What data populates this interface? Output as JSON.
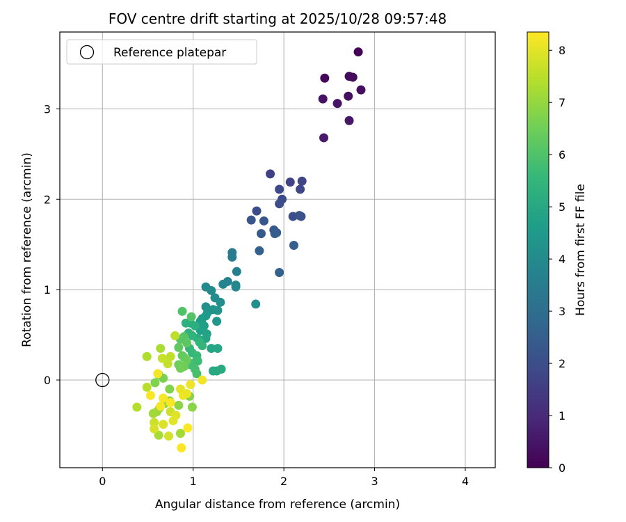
{
  "chart_data": {
    "type": "scatter",
    "title": "FOV centre drift starting at 2025/10/28 09:57:48",
    "xlabel": "Angular distance from reference (arcmin)",
    "ylabel": "Rotation from reference (arcmin)",
    "xlim": [
      -0.47,
      4.33
    ],
    "ylim": [
      -0.97,
      3.85
    ],
    "xticks": [
      0,
      1,
      2,
      3,
      4
    ],
    "yticks": [
      0,
      1,
      2,
      3
    ],
    "grid": true,
    "legend": {
      "label": "Reference platepar",
      "position": "top-left"
    },
    "reference_point": {
      "x": 0,
      "y": 0
    },
    "colorbar": {
      "label": "Hours from first FF file",
      "min": 0,
      "max": 8.35,
      "ticks": [
        0,
        1,
        2,
        3,
        4,
        5,
        6,
        7,
        8
      ],
      "colormap": "viridis"
    },
    "colormap_stops": [
      "#440154",
      "#482878",
      "#3e4989",
      "#31688e",
      "#26828e",
      "#1f9e89",
      "#35b779",
      "#6ece58",
      "#b5de2b",
      "#fde725"
    ],
    "points": [
      [
        2.82,
        3.63,
        0.05
      ],
      [
        2.45,
        3.34,
        0.15
      ],
      [
        2.72,
        3.36,
        0.2
      ],
      [
        2.76,
        3.35,
        0.25
      ],
      [
        2.85,
        3.21,
        0.3
      ],
      [
        2.71,
        3.14,
        0.35
      ],
      [
        2.43,
        3.11,
        0.4
      ],
      [
        2.59,
        3.06,
        0.45
      ],
      [
        2.72,
        2.87,
        0.5
      ],
      [
        2.44,
        2.68,
        0.6
      ],
      [
        1.85,
        2.28,
        1.6
      ],
      [
        2.07,
        2.19,
        1.7
      ],
      [
        2.2,
        2.2,
        1.75
      ],
      [
        2.18,
        2.11,
        1.8
      ],
      [
        1.95,
        2.11,
        1.85
      ],
      [
        1.98,
        2.0,
        1.9
      ],
      [
        1.95,
        1.95,
        1.95
      ],
      [
        1.7,
        1.87,
        2.0
      ],
      [
        2.1,
        1.81,
        2.05
      ],
      [
        2.19,
        1.81,
        2.1
      ],
      [
        2.17,
        1.82,
        2.15
      ],
      [
        1.64,
        1.77,
        2.2
      ],
      [
        1.78,
        1.76,
        2.25
      ],
      [
        1.89,
        1.66,
        2.3
      ],
      [
        1.75,
        1.62,
        2.35
      ],
      [
        1.92,
        1.63,
        2.4
      ],
      [
        1.9,
        1.62,
        2.45
      ],
      [
        2.11,
        1.49,
        2.5
      ],
      [
        1.73,
        1.43,
        2.55
      ],
      [
        1.95,
        1.19,
        2.6
      ],
      [
        1.43,
        1.41,
        3.4
      ],
      [
        1.43,
        1.36,
        3.5
      ],
      [
        1.48,
        1.2,
        3.6
      ],
      [
        1.38,
        1.09,
        3.7
      ],
      [
        1.33,
        1.06,
        3.8
      ],
      [
        1.47,
        1.05,
        3.85
      ],
      [
        1.47,
        1.03,
        3.9
      ],
      [
        1.14,
        1.03,
        3.95
      ],
      [
        1.2,
        0.99,
        4.0
      ],
      [
        1.24,
        0.91,
        4.05
      ],
      [
        1.3,
        0.86,
        4.1
      ],
      [
        1.69,
        0.84,
        4.15
      ],
      [
        1.14,
        0.81,
        4.2
      ],
      [
        1.22,
        0.78,
        4.25
      ],
      [
        1.27,
        0.77,
        4.3
      ],
      [
        1.16,
        0.75,
        4.35
      ],
      [
        1.26,
        0.65,
        4.4
      ],
      [
        1.14,
        0.71,
        4.5
      ],
      [
        1.1,
        0.68,
        4.55
      ],
      [
        1.08,
        0.65,
        4.6
      ],
      [
        1.12,
        0.6,
        4.65
      ],
      [
        1.08,
        0.55,
        4.7
      ],
      [
        1.15,
        0.51,
        4.8
      ],
      [
        1.14,
        0.46,
        4.85
      ],
      [
        1.2,
        0.35,
        4.9
      ],
      [
        1.27,
        0.35,
        4.95
      ],
      [
        1.22,
        0.1,
        5.0
      ],
      [
        1.26,
        0.1,
        5.05
      ],
      [
        1.31,
        0.12,
        5.1
      ],
      [
        1.05,
        0.46,
        5.15
      ],
      [
        0.97,
        0.63,
        5.2
      ],
      [
        1.02,
        0.6,
        5.25
      ],
      [
        0.92,
        0.63,
        5.3
      ],
      [
        0.95,
        0.52,
        5.35
      ],
      [
        0.99,
        0.49,
        5.4
      ],
      [
        1.07,
        0.42,
        5.45
      ],
      [
        1.1,
        0.38,
        5.5
      ],
      [
        0.96,
        0.35,
        5.55
      ],
      [
        0.99,
        0.3,
        5.6
      ],
      [
        1.04,
        0.27,
        5.65
      ],
      [
        1.05,
        0.21,
        5.7
      ],
      [
        1.01,
        0.19,
        5.75
      ],
      [
        0.97,
        0.17,
        5.8
      ],
      [
        1.02,
        0.12,
        5.85
      ],
      [
        1.04,
        0.07,
        5.9
      ],
      [
        0.88,
        0.76,
        6.0
      ],
      [
        0.98,
        0.7,
        6.05
      ],
      [
        0.9,
        0.48,
        6.1
      ],
      [
        0.86,
        0.45,
        6.15
      ],
      [
        0.93,
        0.41,
        6.2
      ],
      [
        0.84,
        0.36,
        6.25
      ],
      [
        0.88,
        0.27,
        6.3
      ],
      [
        0.9,
        0.25,
        6.35
      ],
      [
        0.93,
        0.22,
        6.4
      ],
      [
        0.84,
        0.17,
        6.45
      ],
      [
        0.9,
        0.15,
        6.5
      ],
      [
        0.86,
        0.13,
        6.55
      ],
      [
        0.62,
        0.06,
        6.6
      ],
      [
        0.67,
        0.02,
        6.65
      ],
      [
        0.58,
        -0.03,
        6.7
      ],
      [
        0.74,
        -0.1,
        6.75
      ],
      [
        0.96,
        -0.18,
        6.8
      ],
      [
        0.99,
        -0.3,
        6.85
      ],
      [
        0.84,
        -0.28,
        6.9
      ],
      [
        0.74,
        -0.23,
        6.95
      ],
      [
        0.69,
        -0.26,
        7.0
      ],
      [
        0.63,
        -0.31,
        7.05
      ],
      [
        0.6,
        -0.35,
        7.1
      ],
      [
        0.56,
        -0.37,
        7.15
      ],
      [
        0.86,
        -0.59,
        7.2
      ],
      [
        0.62,
        -0.61,
        7.25
      ],
      [
        0.64,
        0.35,
        7.3
      ],
      [
        0.49,
        0.26,
        7.35
      ],
      [
        0.38,
        -0.3,
        7.4
      ],
      [
        0.49,
        -0.08,
        7.45
      ],
      [
        0.8,
        0.49,
        7.5
      ],
      [
        0.75,
        0.26,
        7.55
      ],
      [
        0.72,
        0.18,
        7.6
      ],
      [
        0.66,
        0.24,
        7.65
      ],
      [
        0.57,
        -0.47,
        7.7
      ],
      [
        0.75,
        -0.35,
        7.75
      ],
      [
        0.73,
        -0.62,
        7.8
      ],
      [
        0.57,
        -0.54,
        7.85
      ],
      [
        0.67,
        -0.49,
        7.9
      ],
      [
        0.81,
        -0.39,
        7.95
      ],
      [
        0.78,
        -0.45,
        8.0
      ],
      [
        0.86,
        -0.1,
        8.05
      ],
      [
        0.89,
        -0.17,
        8.1
      ],
      [
        0.93,
        -0.15,
        8.12
      ],
      [
        0.97,
        -0.05,
        8.15
      ],
      [
        1.1,
        0.0,
        8.2
      ],
      [
        0.61,
        0.07,
        8.22
      ],
      [
        0.67,
        -0.2,
        8.25
      ],
      [
        0.64,
        -0.29,
        8.27
      ],
      [
        0.75,
        -0.25,
        8.3
      ],
      [
        0.94,
        -0.53,
        8.32
      ],
      [
        0.87,
        -0.75,
        8.35
      ],
      [
        0.53,
        -0.17,
        8.3
      ]
    ]
  }
}
